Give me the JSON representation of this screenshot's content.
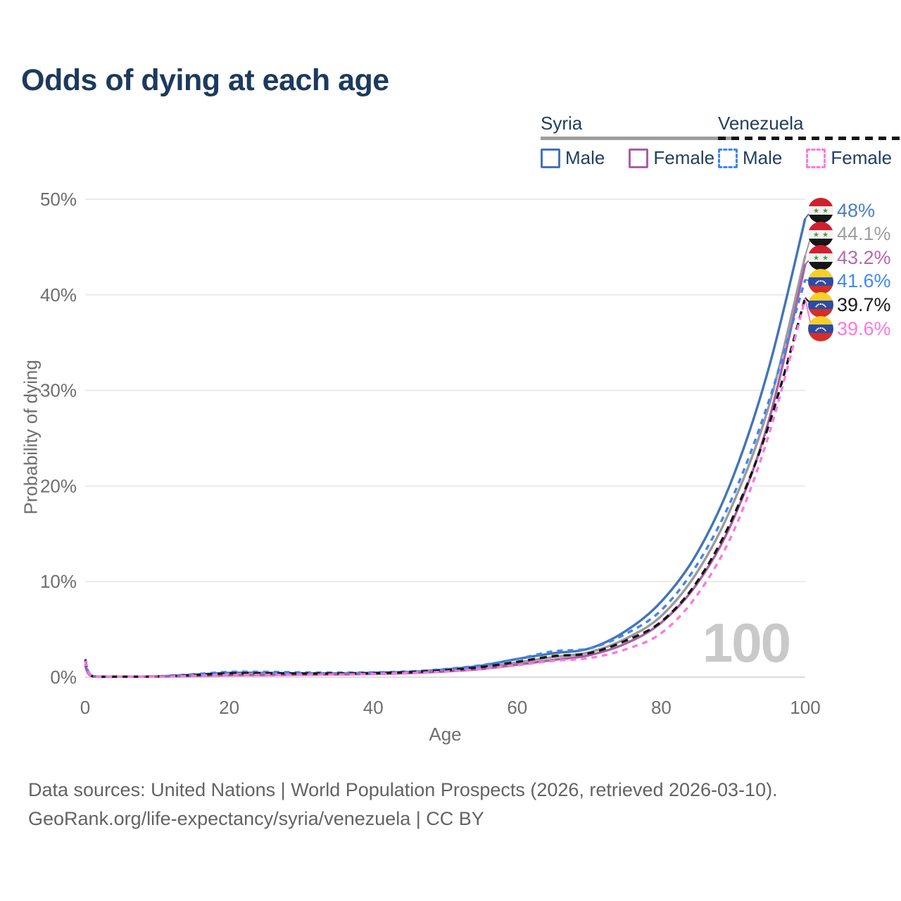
{
  "title": "Odds of dying at each age",
  "legend": {
    "groups": [
      {
        "name": "Syria",
        "line_style": "solid",
        "underline_color": "#9e9e9e",
        "items": [
          {
            "label": "Male",
            "color": "#4274b8",
            "dashed": false
          },
          {
            "label": "Female",
            "color": "#a85fa5",
            "dashed": false
          }
        ]
      },
      {
        "name": "Venezuela",
        "line_style": "dashed",
        "underline_color": "#151515",
        "items": [
          {
            "label": "Male",
            "color": "#4285f0",
            "dashed": true
          },
          {
            "label": "Female",
            "color": "#fb79e0",
            "dashed": true
          }
        ]
      }
    ]
  },
  "chart_data": {
    "type": "line",
    "title": "Odds of dying at each age",
    "xlabel": "Age",
    "ylabel": "Probability of dying",
    "xlim": [
      0,
      100
    ],
    "ylim": [
      0,
      50
    ],
    "grid": true,
    "x_ticks": [
      0,
      20,
      40,
      60,
      80,
      100
    ],
    "y_tick_values": [
      0,
      10,
      20,
      30,
      40,
      50
    ],
    "y_tick_labels": [
      "0%",
      "10%",
      "20%",
      "30%",
      "40%",
      "50%"
    ],
    "x": [
      0,
      1,
      5,
      10,
      15,
      20,
      25,
      30,
      35,
      40,
      45,
      50,
      55,
      60,
      65,
      70,
      75,
      80,
      85,
      90,
      95,
      100
    ],
    "series": [
      {
        "name": "Syria Male",
        "color": "#4274b8",
        "dash": "solid",
        "flag_icon": "syria-flag-icon",
        "end_label": "48%",
        "label_color": "#4a7dc4",
        "values": [
          1.4,
          0.1,
          0.06,
          0.08,
          0.25,
          0.45,
          0.45,
          0.4,
          0.4,
          0.45,
          0.55,
          0.8,
          1.2,
          1.9,
          2.5,
          3.0,
          4.8,
          7.9,
          13.0,
          21.0,
          32.5,
          48.0
        ]
      },
      {
        "name": "Syria",
        "color": "#9b9b9b",
        "dash": "solid",
        "flag_icon": "syria-flag-icon",
        "end_label": "44.1%",
        "label_color": "#9e9e9e",
        "values": [
          1.3,
          0.09,
          0.05,
          0.07,
          0.18,
          0.32,
          0.33,
          0.32,
          0.33,
          0.4,
          0.5,
          0.7,
          1.0,
          1.55,
          2.1,
          2.6,
          4.0,
          6.4,
          11.0,
          18.2,
          28.5,
          44.1
        ]
      },
      {
        "name": "Syria Female",
        "color": "#a85fa5",
        "dash": "solid",
        "flag_icon": "syria-flag-icon",
        "end_label": "43.2%",
        "label_color": "#b667af",
        "values": [
          1.2,
          0.08,
          0.05,
          0.06,
          0.12,
          0.2,
          0.22,
          0.25,
          0.28,
          0.33,
          0.42,
          0.6,
          0.85,
          1.3,
          1.8,
          2.3,
          3.5,
          5.7,
          9.8,
          16.5,
          27.0,
          43.2
        ]
      },
      {
        "name": "Venezuela Male",
        "color": "#4285f0",
        "dash": "dashed",
        "flag_icon": "venezuela-flag-icon",
        "end_label": "41.6%",
        "label_color": "#4189f4",
        "values": [
          1.9,
          0.12,
          0.06,
          0.08,
          0.3,
          0.55,
          0.55,
          0.5,
          0.48,
          0.5,
          0.6,
          0.85,
          1.25,
          1.9,
          2.7,
          3.0,
          4.5,
          7.0,
          11.8,
          19.0,
          29.0,
          41.6
        ]
      },
      {
        "name": "Venezuela",
        "color": "#161616",
        "dash": "dashed",
        "flag_icon": "venezuela-flag-icon",
        "end_label": "39.7%",
        "label_color": "#1b1b1b",
        "values": [
          1.8,
          0.11,
          0.05,
          0.07,
          0.22,
          0.4,
          0.4,
          0.38,
          0.38,
          0.42,
          0.52,
          0.72,
          1.05,
          1.6,
          2.2,
          2.5,
          3.8,
          5.8,
          10.0,
          16.8,
          26.5,
          39.7
        ]
      },
      {
        "name": "Venezuela Female",
        "color": "#fb79e0",
        "dash": "dashed",
        "flag_icon": "venezuela-flag-icon",
        "end_label": "39.6%",
        "label_color": "#fb77e2",
        "values": [
          1.7,
          0.1,
          0.05,
          0.06,
          0.14,
          0.22,
          0.24,
          0.26,
          0.28,
          0.33,
          0.42,
          0.58,
          0.85,
          1.25,
          1.7,
          2.0,
          2.9,
          4.6,
          8.6,
          15.2,
          25.5,
          39.6
        ]
      }
    ],
    "legend_position": "top-right"
  },
  "watermark": "100",
  "footer": {
    "line1": "Data sources: United Nations | World Population Prospects (2026, retrieved 2026-03-10).",
    "line2": "GeoRank.org/life-expectancy/syria/venezuela | CC BY"
  }
}
